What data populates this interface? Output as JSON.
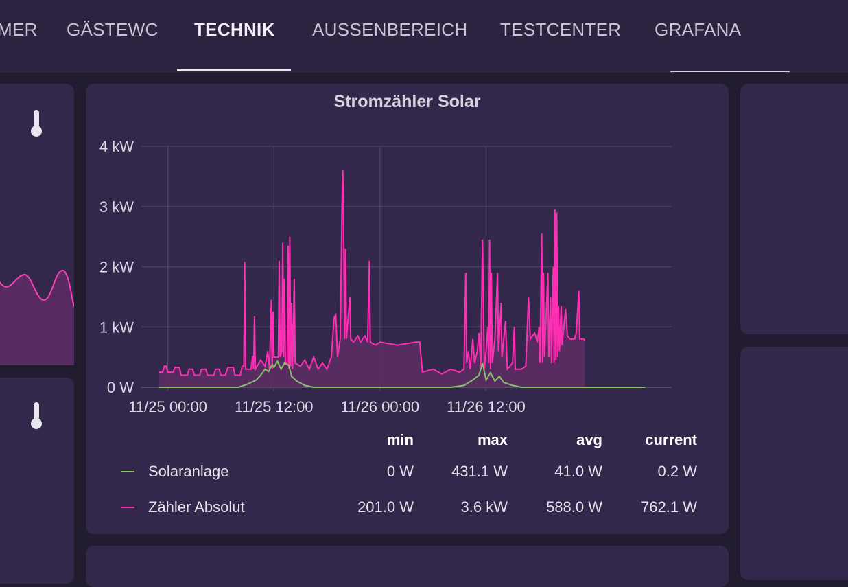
{
  "nav": {
    "tabs": [
      {
        "label": "MER"
      },
      {
        "label": "GÄSTEWC"
      },
      {
        "label": "TECHNIK"
      },
      {
        "label": "AUSSENBEREICH"
      },
      {
        "label": "TESTCENTER"
      },
      {
        "label": "GRAFANA"
      }
    ],
    "active": "TECHNIK"
  },
  "colors": {
    "solar": "#8bc06a",
    "meter": "#ff2fb4",
    "meter_fill": "#5b2e64"
  },
  "chart_data": {
    "type": "line",
    "title": "Stromzähler Solar",
    "yunit": "kW",
    "ylim": [
      0,
      4
    ],
    "yticks": [
      "0 W",
      "1 kW",
      "2 kW",
      "3 kW",
      "4 kW"
    ],
    "xlim_hours": [
      -3,
      57
    ],
    "xticks": [
      {
        "h": 0,
        "label": "11/25 00:00"
      },
      {
        "h": 12,
        "label": "11/25 12:00"
      },
      {
        "h": 24,
        "label": "11/26 00:00"
      },
      {
        "h": 36,
        "label": "11/26 12:00"
      }
    ],
    "series": [
      {
        "name": "Solaranlage",
        "points": [
          [
            -1,
            0
          ],
          [
            8,
            0
          ],
          [
            9,
            0.05
          ],
          [
            10,
            0.12
          ],
          [
            10.5,
            0.2
          ],
          [
            11,
            0.3
          ],
          [
            11.4,
            0.26
          ],
          [
            11.8,
            0.38
          ],
          [
            12,
            0.33
          ],
          [
            12.4,
            0.43
          ],
          [
            12.8,
            0.3
          ],
          [
            13.2,
            0.4
          ],
          [
            13.7,
            0.36
          ],
          [
            14,
            0.18
          ],
          [
            14.6,
            0.1
          ],
          [
            15.5,
            0.03
          ],
          [
            16.5,
            0
          ],
          [
            32,
            0
          ],
          [
            33.5,
            0.03
          ],
          [
            34.5,
            0.12
          ],
          [
            35.2,
            0.2
          ],
          [
            35.6,
            0.4
          ],
          [
            36,
            0.12
          ],
          [
            36.5,
            0.24
          ],
          [
            37,
            0.1
          ],
          [
            37.5,
            0.18
          ],
          [
            38,
            0.08
          ],
          [
            39,
            0.03
          ],
          [
            40,
            0
          ],
          [
            54,
            0
          ]
        ]
      },
      {
        "name": "Zähler Absolut",
        "points": [
          [
            -1,
            0.25
          ],
          [
            -0.6,
            0.25
          ],
          [
            -0.4,
            0.35
          ],
          [
            -0.2,
            0.35
          ],
          [
            0,
            0.25
          ],
          [
            0.6,
            0.25
          ],
          [
            0.8,
            0.33
          ],
          [
            1.3,
            0.33
          ],
          [
            1.5,
            0.2
          ],
          [
            2.2,
            0.2
          ],
          [
            2.4,
            0.3
          ],
          [
            2.8,
            0.3
          ],
          [
            3,
            0.2
          ],
          [
            3.6,
            0.2
          ],
          [
            3.8,
            0.3
          ],
          [
            4.3,
            0.3
          ],
          [
            4.5,
            0.2
          ],
          [
            5.2,
            0.2
          ],
          [
            5.4,
            0.3
          ],
          [
            5.8,
            0.3
          ],
          [
            6,
            0.2
          ],
          [
            6.5,
            0.2
          ],
          [
            6.8,
            0.33
          ],
          [
            7.4,
            0.33
          ],
          [
            7.6,
            0.2
          ],
          [
            8.2,
            0.2
          ],
          [
            8.4,
            0.35
          ],
          [
            8.6,
            0.35
          ],
          [
            8.7,
            2.08
          ],
          [
            8.8,
            0.3
          ],
          [
            9.4,
            0.3
          ],
          [
            9.6,
            0.52
          ],
          [
            9.7,
            0.3
          ],
          [
            9.8,
            1.18
          ],
          [
            9.9,
            0.3
          ],
          [
            10.5,
            0.45
          ],
          [
            11,
            0.35
          ],
          [
            11.3,
            0.6
          ],
          [
            11.5,
            0.3
          ],
          [
            11.7,
            1.45
          ],
          [
            11.8,
            0.3
          ],
          [
            11.9,
            1.25
          ],
          [
            12,
            0.5
          ],
          [
            12.5,
            0.5
          ],
          [
            12.6,
            2.1
          ],
          [
            12.7,
            0.5
          ],
          [
            12.9,
            0.6
          ],
          [
            13,
            2.4
          ],
          [
            13.1,
            0.5
          ],
          [
            13.2,
            1.8
          ],
          [
            13.3,
            0.4
          ],
          [
            13.5,
            0.4
          ],
          [
            13.6,
            2.35
          ],
          [
            13.7,
            0.3
          ],
          [
            13.8,
            2.5
          ],
          [
            13.9,
            0.35
          ],
          [
            14,
            1.4
          ],
          [
            14.1,
            0.3
          ],
          [
            14.3,
            1.8
          ],
          [
            14.4,
            0.4
          ],
          [
            15,
            0.35
          ],
          [
            15.5,
            0.45
          ],
          [
            16,
            0.3
          ],
          [
            16.5,
            0.5
          ],
          [
            17,
            0.3
          ],
          [
            17.5,
            0.4
          ],
          [
            18,
            0.3
          ],
          [
            18.5,
            0.5
          ],
          [
            18.8,
            1.15
          ],
          [
            19,
            1.2
          ],
          [
            19.2,
            0.5
          ],
          [
            19.5,
            0.8
          ],
          [
            19.7,
            3.0
          ],
          [
            19.8,
            3.6
          ],
          [
            19.9,
            2.5
          ],
          [
            20,
            0.8
          ],
          [
            20.1,
            2.3
          ],
          [
            20.2,
            0.8
          ],
          [
            20.6,
            1.5
          ],
          [
            20.7,
            0.8
          ],
          [
            21,
            0.75
          ],
          [
            21.5,
            0.85
          ],
          [
            21.8,
            0.75
          ],
          [
            22.3,
            0.85
          ],
          [
            22.6,
            0.75
          ],
          [
            22.8,
            2.1
          ],
          [
            22.9,
            0.75
          ],
          [
            23.5,
            0.7
          ],
          [
            24,
            0.75
          ],
          [
            26,
            0.7
          ],
          [
            28,
            0.75
          ],
          [
            28.5,
            0.75
          ],
          [
            28.8,
            0.25
          ],
          [
            30,
            0.3
          ],
          [
            31,
            0.22
          ],
          [
            32,
            0.3
          ],
          [
            33,
            0.25
          ],
          [
            33.5,
            0.3
          ],
          [
            33.7,
            1.9
          ],
          [
            33.8,
            0.4
          ],
          [
            34,
            0.6
          ],
          [
            34.2,
            0.3
          ],
          [
            34.5,
            0.8
          ],
          [
            34.7,
            0.4
          ],
          [
            35,
            0.6
          ],
          [
            35.2,
            0.9
          ],
          [
            35.4,
            0.35
          ],
          [
            35.6,
            2.45
          ],
          [
            35.8,
            0.3
          ],
          [
            36,
            0.6
          ],
          [
            36.2,
            1.0
          ],
          [
            36.3,
            0.4
          ],
          [
            36.4,
            2.45
          ],
          [
            36.5,
            0.3
          ],
          [
            36.6,
            1.9
          ],
          [
            36.7,
            0.4
          ],
          [
            37,
            0.8
          ],
          [
            37.3,
            1.9
          ],
          [
            37.4,
            0.6
          ],
          [
            37.7,
            1.4
          ],
          [
            37.8,
            0.5
          ],
          [
            38.2,
            1.1
          ],
          [
            38.4,
            0.3
          ],
          [
            39,
            0.4
          ],
          [
            39.2,
            1.0
          ],
          [
            39.3,
            0.3
          ],
          [
            40,
            0.3
          ],
          [
            40.5,
            0.35
          ],
          [
            40.8,
            1.5
          ],
          [
            41,
            0.8
          ],
          [
            41.5,
            0.9
          ],
          [
            41.8,
            0.75
          ],
          [
            42,
            1.0
          ],
          [
            42.1,
            0.4
          ],
          [
            42.3,
            2.55
          ],
          [
            42.4,
            0.4
          ],
          [
            42.5,
            1.9
          ],
          [
            42.6,
            0.5
          ],
          [
            43,
            1.9
          ],
          [
            43.1,
            0.5
          ],
          [
            43.3,
            1.5
          ],
          [
            43.4,
            0.4
          ],
          [
            43.6,
            2.0
          ],
          [
            43.7,
            0.4
          ],
          [
            43.8,
            2.95
          ],
          [
            43.9,
            0.45
          ],
          [
            44,
            2.9
          ],
          [
            44.1,
            0.5
          ],
          [
            44.2,
            1.35
          ],
          [
            44.3,
            0.6
          ],
          [
            44.5,
            1.35
          ],
          [
            44.6,
            0.7
          ],
          [
            45,
            1.3
          ],
          [
            45.2,
            0.85
          ],
          [
            45.5,
            0.8
          ],
          [
            46,
            0.8
          ],
          [
            46.2,
            0.9
          ],
          [
            46.5,
            1.6
          ],
          [
            46.6,
            0.8
          ],
          [
            47,
            0.8
          ],
          [
            47.2,
            0.78
          ]
        ]
      }
    ]
  },
  "legend": {
    "headers": [
      "min",
      "max",
      "avg",
      "current"
    ],
    "rows": [
      {
        "name": "Solaranlage",
        "min": "0 W",
        "max": "431.1 W",
        "avg": "41.0 W",
        "current": "0.2 W"
      },
      {
        "name": "Zähler Absolut",
        "min": "201.0 W",
        "max": "3.6 kW",
        "avg": "588.0 W",
        "current": "762.1 W"
      }
    ]
  }
}
